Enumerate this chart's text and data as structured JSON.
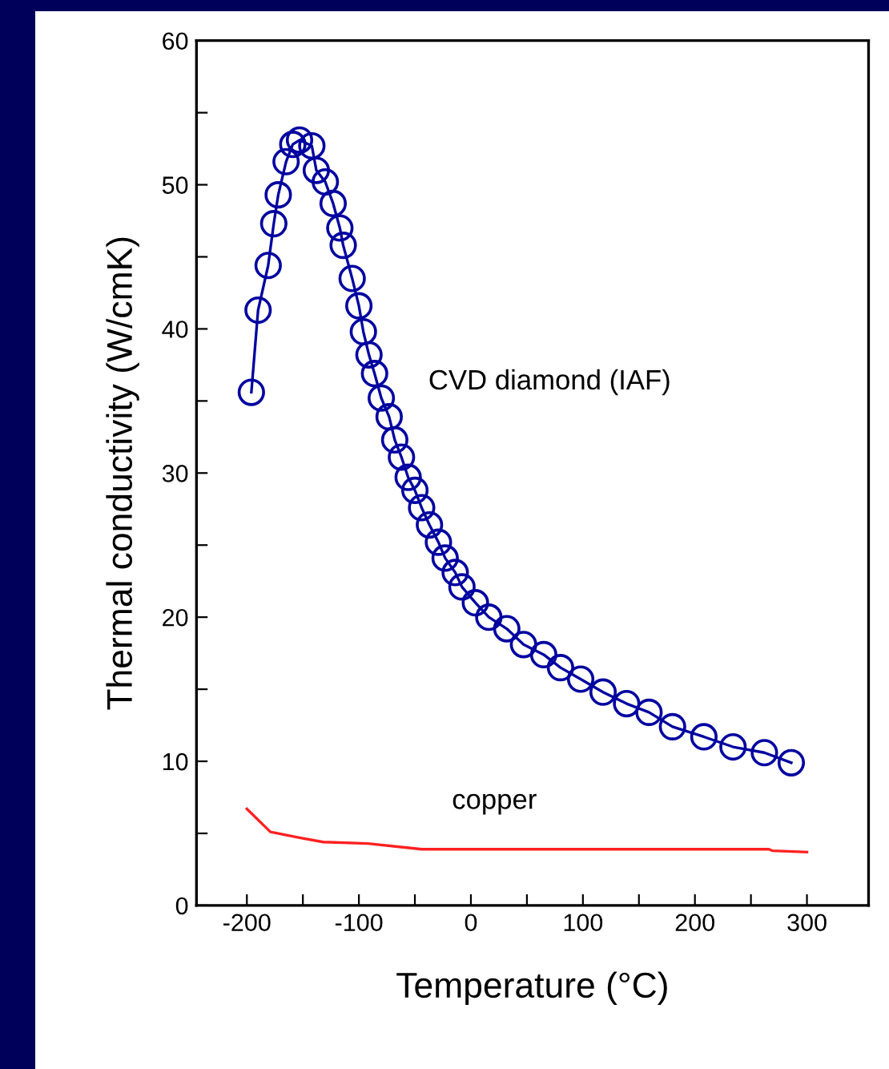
{
  "chart_data": {
    "type": "line",
    "xlabel": "Temperature (°C)",
    "ylabel": "Thermal conductivity (W/cmK)",
    "xlim": [
      -245,
      355
    ],
    "ylim": [
      0,
      60
    ],
    "xticks": [
      -200,
      {
        "value": -150,
        "label": null
      },
      -100,
      {
        "value": -50,
        "label": null
      },
      0,
      {
        "value": 50,
        "label": null
      },
      100,
      {
        "value": 150,
        "label": null
      },
      200,
      {
        "value": 250,
        "label": null
      },
      300
    ],
    "yticks": [
      0,
      {
        "value": 5,
        "label": null
      },
      10,
      {
        "value": 15,
        "label": null
      },
      20,
      {
        "value": 25,
        "label": null
      },
      30,
      {
        "value": 35,
        "label": null
      },
      40,
      {
        "value": 45,
        "label": null
      },
      50,
      {
        "value": 55,
        "label": null
      },
      60
    ],
    "grid": false,
    "legend": false,
    "series": [
      {
        "name": "CVD diamond (IAF)",
        "color": "#0000a0",
        "marker": "circle",
        "x": [
          -196,
          -190,
          -181,
          -176,
          -172,
          -165,
          -159,
          -153,
          -142,
          -138,
          -130,
          -123,
          -117,
          -114,
          -106,
          -100,
          -96,
          -91,
          -86,
          -80,
          -73,
          -68,
          -62,
          -56,
          -50,
          -44,
          -37,
          -29,
          -23,
          -14,
          -8,
          4,
          16,
          32,
          47,
          65,
          80,
          98,
          118,
          139,
          159,
          180,
          208,
          234,
          262,
          286
        ],
        "values": [
          35.6,
          41.3,
          44.4,
          47.3,
          49.3,
          51.6,
          52.8,
          53.1,
          52.7,
          51.0,
          50.2,
          48.7,
          47.0,
          45.8,
          43.5,
          41.6,
          39.8,
          38.2,
          36.9,
          35.2,
          33.9,
          32.3,
          31.1,
          29.7,
          28.8,
          27.6,
          26.4,
          25.2,
          24.1,
          23.1,
          22.1,
          21.0,
          20.0,
          19.2,
          18.1,
          17.4,
          16.5,
          15.7,
          14.8,
          14.0,
          13.4,
          12.4,
          11.7,
          11.0,
          10.6,
          9.9
        ]
      },
      {
        "name": "copper",
        "color": "#ff2020",
        "marker": "none",
        "x": [
          -200,
          -179,
          -153,
          -132,
          -92,
          -44,
          266,
          269,
          300
        ],
        "values": [
          6.7,
          5.1,
          4.7,
          4.4,
          4.3,
          3.9,
          3.9,
          3.8,
          3.7
        ]
      }
    ]
  }
}
